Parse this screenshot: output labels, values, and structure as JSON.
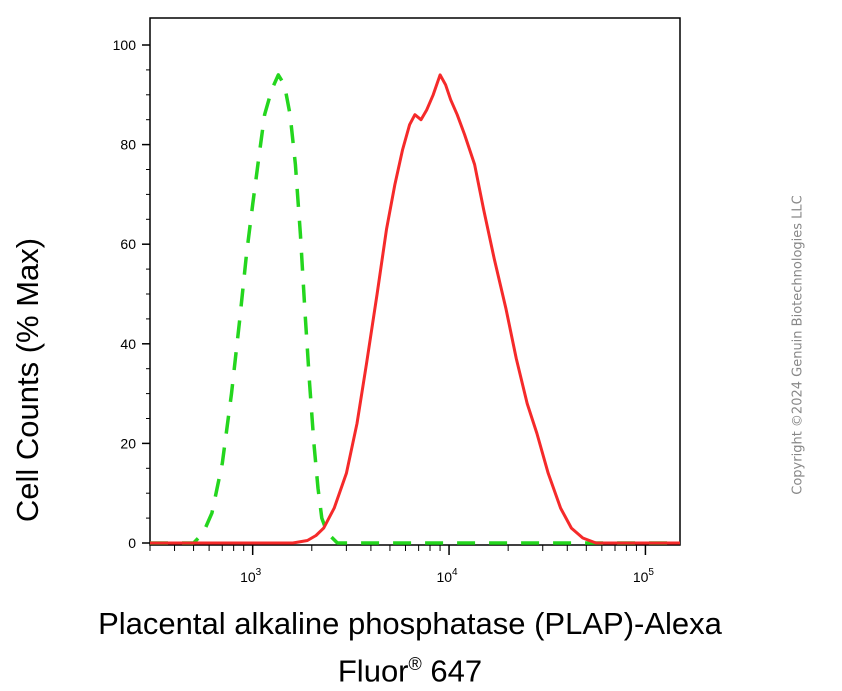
{
  "chart_data": {
    "type": "line",
    "title": "",
    "xlabel_line1": "Placental alkaline phosphatase (PLAP)-Alexa",
    "xlabel_line2_prefix": "Fluor",
    "xlabel_line2_sup": "®",
    "xlabel_line2_suffix": " 647",
    "ylabel": "Cell Counts (% Max)",
    "x_scale": "log",
    "xlim": [
      300,
      150000
    ],
    "ylim": [
      0,
      105
    ],
    "grid": false,
    "legend": "none",
    "y_ticks": [
      0,
      20,
      40,
      60,
      80,
      100
    ],
    "y_tick_labels": [
      "0",
      "20",
      "40",
      "60",
      "80",
      "100"
    ],
    "x_major_ticks": [
      1000,
      10000,
      100000
    ],
    "x_tick_label_base": "10",
    "x_tick_label_exponents": [
      "3",
      "4",
      "5"
    ],
    "series": [
      {
        "color": "#24d61e",
        "style": "dashed",
        "points": [
          [
            300,
            0
          ],
          [
            500,
            0
          ],
          [
            560,
            2
          ],
          [
            620,
            6
          ],
          [
            700,
            16
          ],
          [
            780,
            30
          ],
          [
            860,
            45
          ],
          [
            930,
            58
          ],
          [
            1000,
            68
          ],
          [
            1080,
            78
          ],
          [
            1150,
            86
          ],
          [
            1250,
            91
          ],
          [
            1350,
            94
          ],
          [
            1450,
            92
          ],
          [
            1550,
            86
          ],
          [
            1650,
            76
          ],
          [
            1750,
            62
          ],
          [
            1850,
            46
          ],
          [
            1950,
            32
          ],
          [
            2050,
            20
          ],
          [
            2150,
            11
          ],
          [
            2250,
            5
          ],
          [
            2400,
            2
          ],
          [
            2700,
            0
          ],
          [
            150000,
            0
          ]
        ]
      },
      {
        "color": "#f52a2a",
        "style": "solid",
        "points": [
          [
            300,
            0
          ],
          [
            1600,
            0
          ],
          [
            1900,
            0.5
          ],
          [
            2100,
            1.5
          ],
          [
            2300,
            3
          ],
          [
            2600,
            7
          ],
          [
            3000,
            14
          ],
          [
            3400,
            24
          ],
          [
            3800,
            36
          ],
          [
            4300,
            50
          ],
          [
            4800,
            63
          ],
          [
            5300,
            72
          ],
          [
            5800,
            79
          ],
          [
            6300,
            84
          ],
          [
            6700,
            86
          ],
          [
            7200,
            85
          ],
          [
            7700,
            87
          ],
          [
            8300,
            90
          ],
          [
            9000,
            94
          ],
          [
            9600,
            92
          ],
          [
            10200,
            89
          ],
          [
            11000,
            86
          ],
          [
            12000,
            82
          ],
          [
            13500,
            76
          ],
          [
            15000,
            67
          ],
          [
            17000,
            57
          ],
          [
            19500,
            47
          ],
          [
            22000,
            37
          ],
          [
            25000,
            28
          ],
          [
            28000,
            22
          ],
          [
            32000,
            14
          ],
          [
            37000,
            7
          ],
          [
            42000,
            3
          ],
          [
            48000,
            1
          ],
          [
            56000,
            0
          ],
          [
            150000,
            0
          ]
        ]
      }
    ]
  },
  "watermark": "Copyright ©2024 Genuin Biotechnologies LLC"
}
